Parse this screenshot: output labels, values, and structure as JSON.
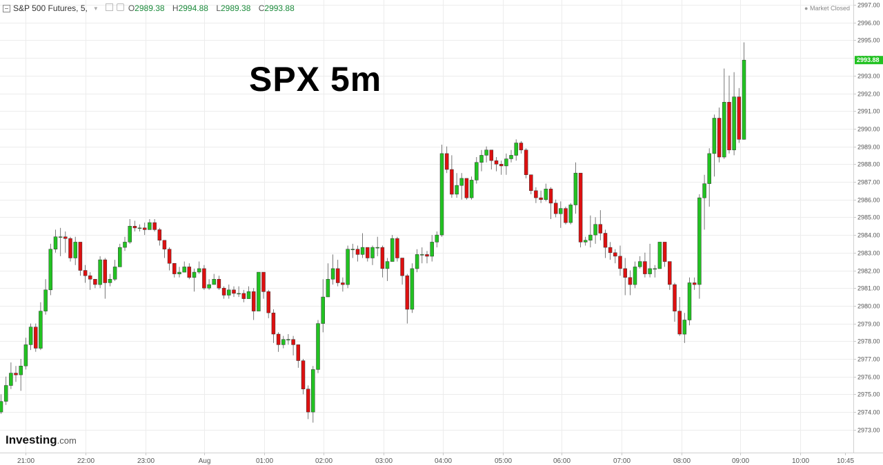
{
  "header": {
    "symbol": "S&P 500 Futures, 5,",
    "open_label": "O",
    "open": "2989.38",
    "high_label": "H",
    "high": "2994.88",
    "low_label": "L",
    "low": "2989.38",
    "close_label": "C",
    "close": "2993.88",
    "status": "Market Closed",
    "collapse_icon": "minus-square-icon",
    "dropdown_icon": "caret-down-icon",
    "settings_icons": [
      "eye-icon",
      "gear-icon"
    ]
  },
  "overlay_title": "SPX 5m",
  "logo": {
    "brand": "Investing",
    "suffix": ".com"
  },
  "colors": {
    "up": "#22c222",
    "down": "#dd1010",
    "grid": "#ececec",
    "last_price_bg": "#22c222"
  },
  "chart_data": {
    "type": "candlestick",
    "ylim": [
      2972.5,
      2997.3
    ],
    "y_ticks": [
      "2973.00",
      "2974.00",
      "2975.00",
      "2976.00",
      "2977.00",
      "2978.00",
      "2979.00",
      "2980.00",
      "2981.00",
      "2982.00",
      "2983.00",
      "2984.00",
      "2985.00",
      "2986.00",
      "2987.00",
      "2988.00",
      "2989.00",
      "2990.00",
      "2991.00",
      "2992.00",
      "2993.00",
      "2994.00",
      "2995.00",
      "2996.00",
      "2997.00"
    ],
    "x_ticks": [
      "21:00",
      "22:00",
      "23:00",
      "Aug",
      "01:00",
      "02:00",
      "03:00",
      "04:00",
      "05:00",
      "06:00",
      "07:00",
      "08:00",
      "09:00",
      "10:00",
      "10:45"
    ],
    "last_price": "2993.88",
    "closes": [
      2974.6,
      2975.5,
      2976.2,
      2976.1,
      2976.6,
      2977.8,
      2978.8,
      2977.6,
      2979.7,
      2980.9,
      2983.2,
      2983.9,
      2983.9,
      2983.8,
      2982.7,
      2983.6,
      2982.0,
      2981.7,
      2981.5,
      2981.2,
      2982.6,
      2981.3,
      2981.5,
      2982.2,
      2983.3,
      2983.6,
      2984.5,
      2984.4,
      2984.4,
      2984.3,
      2984.7,
      2984.3,
      2983.7,
      2983.2,
      2982.4,
      2981.8,
      2981.9,
      2982.2,
      2981.6,
      2981.9,
      2982.1,
      2981.0,
      2981.2,
      2981.5,
      2981.0,
      2980.6,
      2980.9,
      2980.7,
      2980.7,
      2980.4,
      2980.8,
      2979.7,
      2981.9,
      2980.8,
      2979.6,
      2978.4,
      2977.8,
      2978.1,
      2978.1,
      2977.8,
      2976.9,
      2975.3,
      2974.0,
      2976.4,
      2979.0,
      2980.5,
      2981.5,
      2982.1,
      2981.3,
      2981.2,
      2983.2,
      2983.2,
      2982.9,
      2983.3,
      2982.7,
      2983.3,
      2983.3,
      2982.1,
      2982.5,
      2983.8,
      2982.7,
      2981.7,
      2979.8,
      2982.1,
      2982.9,
      2982.9,
      2982.8,
      2983.6,
      2984.0,
      2988.6,
      2987.7,
      2986.3,
      2986.8,
      2987.2,
      2986.1,
      2987.1,
      2988.1,
      2988.5,
      2988.8,
      2988.2,
      2988.0,
      2987.9,
      2988.3,
      2988.5,
      2989.2,
      2988.8,
      2987.4,
      2986.5,
      2986.1,
      2986.0,
      2986.6,
      2985.8,
      2985.2,
      2985.5,
      2984.7,
      2985.7,
      2987.5,
      2983.6,
      2983.7,
      2984.0,
      2984.6,
      2984.1,
      2983.3,
      2983.0,
      2982.8,
      2982.1,
      2981.6,
      2981.2,
      2982.2,
      2982.5,
      2981.8,
      2982.1,
      2982.1,
      2983.6,
      2982.5,
      2981.2,
      2979.7,
      2978.4,
      2979.2,
      2981.3,
      2981.2,
      2986.1,
      2986.9,
      2988.6,
      2990.6,
      2988.4,
      2991.5,
      2988.8,
      2991.8,
      2989.4,
      2993.88
    ],
    "highs": [
      2975.0,
      2976.0,
      2976.8,
      2976.6,
      2977.0,
      2978.2,
      2979.0,
      2979.0,
      2980.2,
      2981.5,
      2983.5,
      2984.3,
      2984.4,
      2984.2,
      2983.9,
      2983.9,
      2983.6,
      2982.3,
      2981.9,
      2981.5,
      2982.8,
      2982.7,
      2981.8,
      2982.6,
      2983.5,
      2983.9,
      2984.9,
      2984.8,
      2984.6,
      2984.7,
      2984.9,
      2984.9,
      2984.4,
      2983.6,
      2983.3,
      2982.3,
      2982.2,
      2982.5,
      2982.4,
      2982.1,
      2982.5,
      2982.3,
      2981.5,
      2981.8,
      2981.7,
      2981.1,
      2981.2,
      2981.1,
      2981.1,
      2980.9,
      2981.1,
      2981.0,
      2981.9,
      2981.9,
      2980.9,
      2979.8,
      2978.5,
      2978.3,
      2978.4,
      2978.3,
      2977.6,
      2977.0,
      2975.5,
      2976.6,
      2979.2,
      2981.5,
      2982.4,
      2982.9,
      2982.6,
      2981.6,
      2983.4,
      2983.5,
      2983.4,
      2984.1,
      2983.3,
      2983.4,
      2983.9,
      2983.4,
      2982.7,
      2984.0,
      2983.9,
      2982.4,
      2981.8,
      2982.4,
      2983.2,
      2983.3,
      2983.1,
      2984.0,
      2984.2,
      2989.1,
      2989.0,
      2988.5,
      2987.5,
      2987.5,
      2987.0,
      2987.3,
      2988.4,
      2988.8,
      2989.0,
      2988.8,
      2988.4,
      2988.2,
      2988.6,
      2988.8,
      2989.4,
      2989.3,
      2988.9,
      2987.0,
      2986.7,
      2986.5,
      2986.9,
      2986.7,
      2986.0,
      2985.9,
      2985.6,
      2985.8,
      2988.1,
      2987.4,
      2983.9,
      2985.1,
      2985.0,
      2985.4,
      2984.3,
      2983.6,
      2983.2,
      2983.4,
      2982.7,
      2982.0,
      2982.5,
      2982.8,
      2983.0,
      2983.5,
      2982.3,
      2983.6,
      2983.6,
      2982.5,
      2981.3,
      2980.5,
      2979.6,
      2981.6,
      2981.6,
      2986.3,
      2987.4,
      2988.9,
      2990.8,
      2991.2,
      2993.4,
      2993.0,
      2993.2,
      2992.3,
      2994.88
    ],
    "lows": [
      2973.9,
      2974.4,
      2975.3,
      2975.7,
      2975.2,
      2976.4,
      2977.5,
      2977.4,
      2977.5,
      2979.5,
      2980.6,
      2983.0,
      2982.8,
      2983.0,
      2982.5,
      2982.3,
      2981.7,
      2981.3,
      2980.9,
      2981.0,
      2981.0,
      2980.4,
      2981.1,
      2981.4,
      2983.0,
      2983.1,
      2983.5,
      2984.2,
      2984.2,
      2984.0,
      2984.3,
      2984.2,
      2983.4,
      2982.7,
      2982.0,
      2981.6,
      2981.6,
      2981.9,
      2981.5,
      2980.8,
      2981.8,
      2980.9,
      2980.9,
      2981.2,
      2980.9,
      2980.4,
      2980.4,
      2980.5,
      2980.5,
      2980.2,
      2980.4,
      2979.2,
      2979.7,
      2980.4,
      2979.3,
      2977.9,
      2977.4,
      2977.6,
      2977.8,
      2977.2,
      2976.5,
      2975.0,
      2973.6,
      2973.4,
      2976.2,
      2978.5,
      2980.7,
      2981.2,
      2981.1,
      2980.8,
      2981.0,
      2982.7,
      2982.5,
      2982.7,
      2982.5,
      2982.3,
      2982.8,
      2981.6,
      2981.4,
      2982.5,
      2982.5,
      2981.2,
      2979.0,
      2979.6,
      2981.9,
      2982.4,
      2982.4,
      2982.5,
      2983.3,
      2983.9,
      2987.5,
      2986.1,
      2986.1,
      2986.0,
      2986.0,
      2986.0,
      2986.9,
      2987.6,
      2988.1,
      2987.7,
      2987.6,
      2987.4,
      2987.4,
      2988.1,
      2988.2,
      2988.6,
      2987.2,
      2986.3,
      2985.8,
      2985.8,
      2985.9,
      2984.9,
      2985.0,
      2984.4,
      2984.6,
      2984.6,
      2985.2,
      2983.3,
      2983.4,
      2983.3,
      2983.5,
      2983.7,
      2982.7,
      2982.6,
      2982.4,
      2981.7,
      2980.6,
      2980.6,
      2981.0,
      2982.1,
      2981.6,
      2981.6,
      2981.6,
      2982.2,
      2982.2,
      2980.9,
      2979.1,
      2978.3,
      2977.9,
      2978.9,
      2980.9,
      2980.4,
      2984.3,
      2985.6,
      2987.3,
      2988.1,
      2988.3,
      2988.6,
      2988.5,
      2989.2,
      2989.38
    ]
  }
}
